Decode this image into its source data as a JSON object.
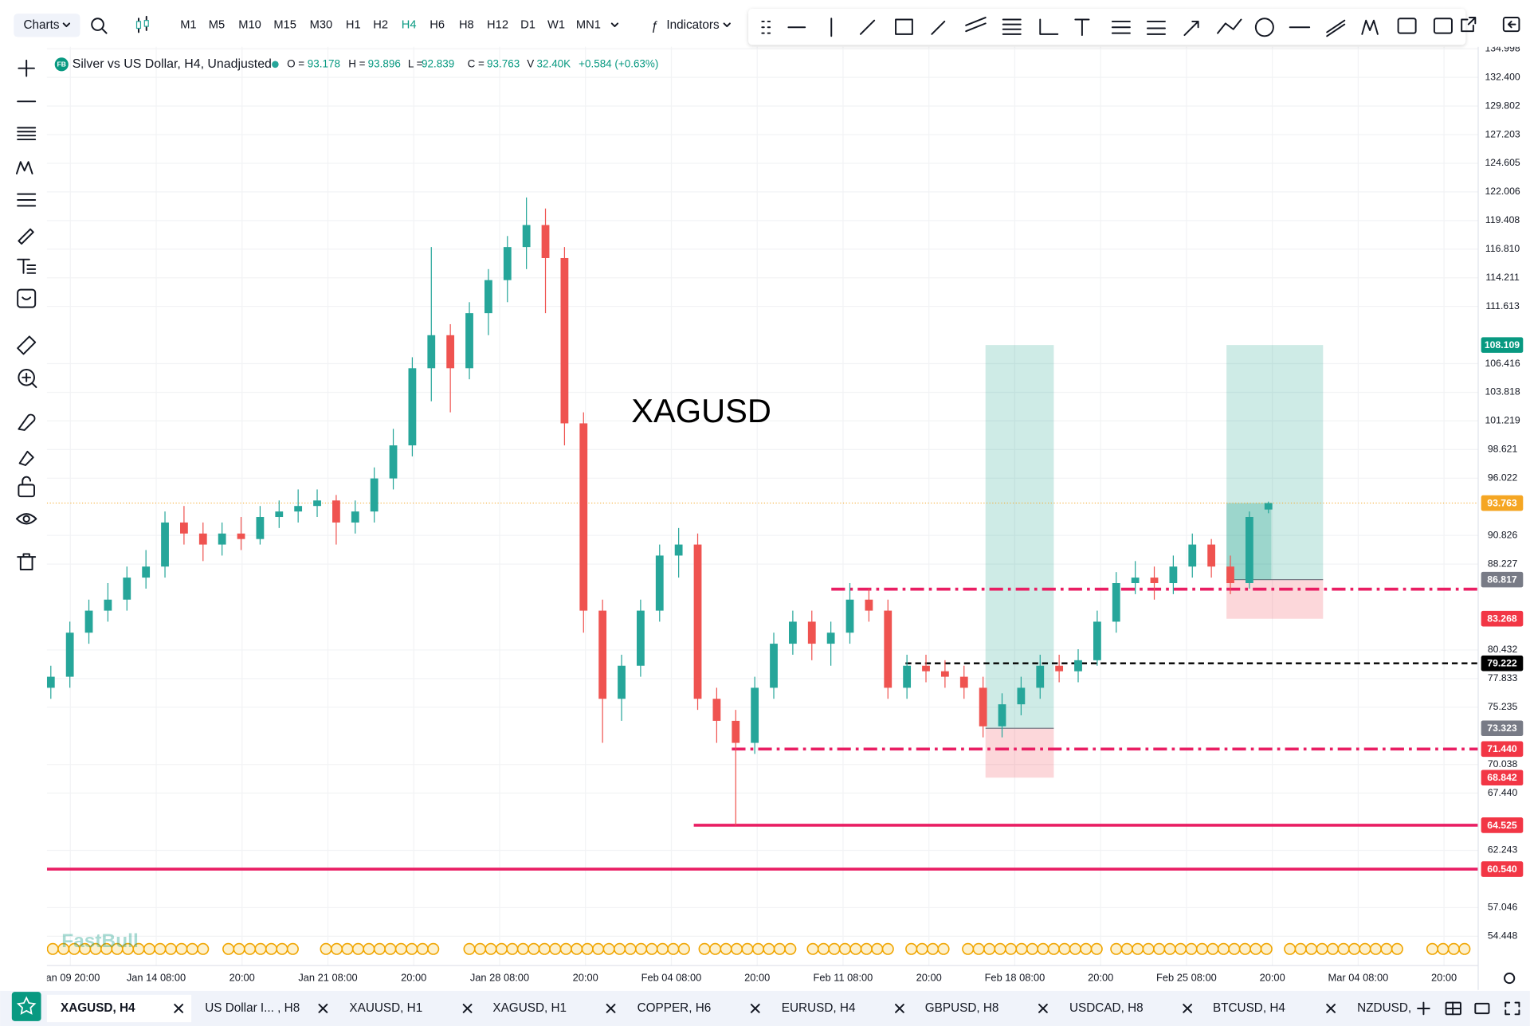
{
  "toolbar": {
    "menu": "Charts",
    "timeframes": [
      "M1",
      "M5",
      "M10",
      "M15",
      "M30",
      "H1",
      "H2",
      "H4",
      "H6",
      "H8",
      "H12",
      "D1",
      "W1",
      "MN1"
    ],
    "active_timeframe": "H4",
    "indicators": "Indicators"
  },
  "logo": "FB",
  "watermark": "FastBull",
  "tabs": [
    "XAGUSD, H4",
    "US Dollar I... , H8",
    "XAUUSD, H1",
    "XAGUSD, H1",
    "COPPER, H6",
    "EURUSD, H4",
    "GBPUSD, H8",
    "USDCAD, H8",
    "BTCUSD, H4",
    "NZDUSD,"
  ],
  "chart_data": {
    "type": "candlestick",
    "title": "Silver vs US Dollar, H4, Unadjusted",
    "annotation": "XAGUSD",
    "ohlc_labels": [
      "O =",
      "H =",
      "L =",
      "C ="
    ],
    "volume_label": "V",
    "volume": "32.40K",
    "change": "+0.584 (+0.63%)",
    "up_color": "#26a69a",
    "down_color": "#ef5350",
    "open": [
      77,
      78,
      82,
      84,
      85,
      87,
      88,
      92,
      91,
      90,
      91,
      90.5,
      92.5,
      93,
      93.5,
      94,
      92,
      93,
      96,
      99,
      106,
      109,
      106,
      111,
      114,
      117,
      119,
      116,
      101,
      84,
      76,
      79,
      84,
      89,
      90,
      76,
      74,
      72,
      77,
      81,
      83,
      81,
      82,
      85,
      84,
      77,
      79,
      78.5,
      78,
      77,
      73.5,
      75.5,
      77,
      79,
      78.5,
      79.5,
      83,
      86.5,
      87,
      86.5,
      88,
      90,
      88,
      86.5,
      93.178
    ],
    "high": [
      79,
      83,
      85,
      86.5,
      88,
      89.5,
      93,
      93.5,
      92,
      92,
      92.5,
      93.5,
      94,
      95,
      95,
      94.5,
      94,
      97,
      100.5,
      107,
      117,
      110,
      112,
      115,
      118,
      121.5,
      120.5,
      117,
      102,
      85,
      80,
      85,
      90,
      91.5,
      91,
      77,
      75,
      78,
      82,
      84,
      84,
      83,
      86.5,
      86,
      85,
      80,
      80,
      79.5,
      79,
      78,
      76.5,
      78,
      80,
      80,
      80.5,
      84,
      87.5,
      88.5,
      88,
      89,
      91,
      90.5,
      89,
      93,
      93.896
    ],
    "low": [
      76,
      77,
      81,
      83,
      84,
      86,
      87,
      90,
      88.5,
      89,
      89.5,
      90,
      91.5,
      92,
      92.5,
      90,
      91,
      92,
      95,
      98,
      103,
      102,
      105,
      109,
      112,
      115,
      111,
      99,
      82,
      72,
      74,
      78,
      83,
      87,
      75,
      72,
      64.5,
      71,
      76,
      80,
      79.5,
      79,
      81,
      83,
      76,
      76,
      77.5,
      77,
      76,
      72.5,
      72.5,
      74.5,
      76,
      77.5,
      77.5,
      79,
      82,
      85.5,
      85,
      85.5,
      87,
      87,
      85.5,
      86,
      92.839
    ],
    "close": [
      78,
      82,
      84,
      85,
      87,
      88,
      92,
      91,
      90,
      91,
      90.5,
      92.5,
      93,
      93.5,
      94,
      92,
      93,
      96,
      99,
      106,
      109,
      106,
      111,
      114,
      117,
      119,
      116,
      101,
      84,
      76,
      79,
      84,
      89,
      90,
      76,
      74,
      72,
      77,
      81,
      83,
      81,
      82,
      85,
      84,
      77,
      79,
      78.5,
      78,
      77,
      73.5,
      75.5,
      77,
      79,
      78.5,
      79.5,
      83,
      86.5,
      87,
      86.5,
      88,
      90,
      88,
      86.5,
      92.5,
      93.763
    ],
    "ylim": [
      51.79,
      135.44
    ],
    "yticks": [
      134.998,
      {
        "value": 132.4,
        "label": "132.400"
      },
      129.802,
      127.203,
      124.605,
      122.006,
      119.408,
      {
        "value": 116.81,
        "label": "116.810"
      },
      114.211,
      111.613,
      106.416,
      103.818,
      101.219,
      98.621,
      96.022,
      90.826,
      88.227,
      80.432,
      77.833,
      75.235,
      70.038,
      {
        "value": 67.44,
        "label": "67.440"
      },
      62.243,
      57.046,
      54.448
    ],
    "x_labels": [
      "Jan 09 20:00",
      "Jan 14 08:00",
      "20:00",
      "Jan 21 08:00",
      "20:00",
      "Jan 28 08:00",
      "20:00",
      "Feb 04 08:00",
      "20:00",
      "Feb 11 08:00",
      "20:00",
      "Feb 18 08:00",
      "20:00",
      "Feb 25 08:00",
      "20:00",
      "Mar 04 08:00",
      "20:00"
    ],
    "grid": true,
    "current_color": "#f5a623",
    "levels": [
      {
        "value": 60.54,
        "color": "#e91e63",
        "style": "solid"
      },
      {
        "value": 64.525,
        "color": "#e91e63",
        "style": "solid"
      },
      {
        "value": 71.44,
        "color": "#e91e63",
        "style": "dash-dot"
      },
      {
        "value": 85.95,
        "color": "#e91e63",
        "style": "dash-dot"
      },
      {
        "value": 79.222,
        "color": "#000000",
        "style": "dashed"
      }
    ],
    "positions": [
      {
        "entry": 73.323,
        "target": 108.109,
        "stop": 68.842
      },
      {
        "entry": 86.817,
        "target": 108.109,
        "stop": 83.268
      }
    ],
    "badges": [
      {
        "value": 108.109,
        "color": "#089981"
      },
      {
        "value": 86.817,
        "color": "#787b86"
      },
      {
        "value": 83.268,
        "color": "#f23645"
      },
      {
        "value": 79.222,
        "color": "#000000"
      },
      {
        "value": 73.323,
        "color": "#787b86"
      },
      {
        "value": 71.44,
        "label": "71.440",
        "color": "#f23645"
      },
      {
        "value": 68.842,
        "color": "#f23645"
      },
      {
        "value": 64.525,
        "color": "#f23645"
      },
      {
        "value": 60.54,
        "label": "60.540",
        "color": "#f23645"
      }
    ]
  }
}
